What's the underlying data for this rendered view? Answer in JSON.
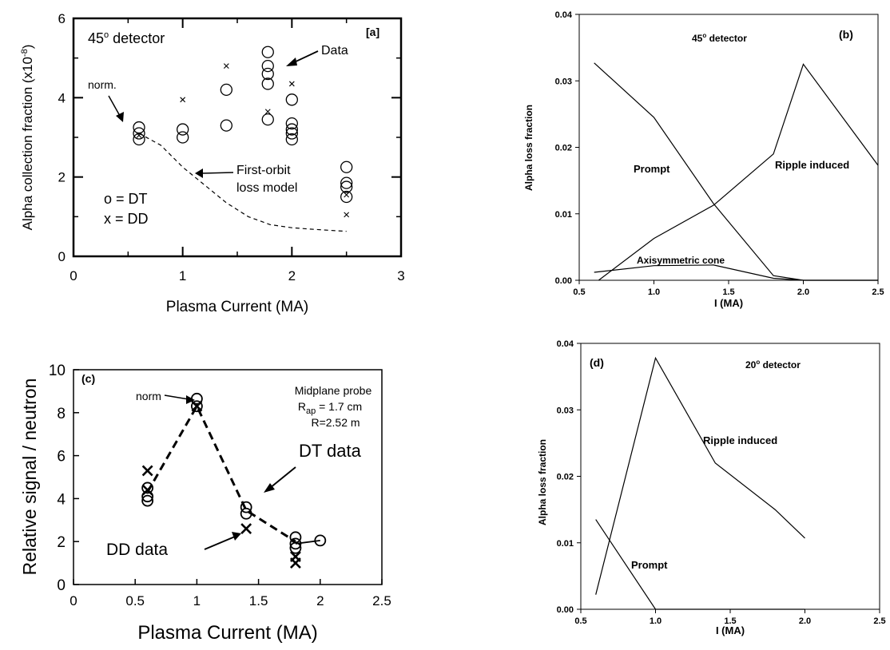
{
  "chart_data": [
    {
      "panel": "a",
      "type": "scatter",
      "panel_label": "[a]",
      "xlabel": "Plasma Current (MA)",
      "ylabel": "Alpha collection fraction (x10",
      "ylabel_exp": "-8",
      "ylabel_close": ")",
      "xlim": [
        0,
        3
      ],
      "ylim": [
        0,
        6
      ],
      "xticks": [
        0,
        1,
        2,
        3
      ],
      "yticks": [
        0,
        2,
        4,
        6
      ],
      "annotations": {
        "detector": "45",
        "detector_deg": "o",
        "detector_suffix": " detector",
        "data": "Data",
        "norm": "norm.",
        "model_line1": "First-orbit",
        "model_line2": "loss model",
        "legend_dt": "o = DT",
        "legend_dd": "x = DD"
      },
      "series": [
        {
          "name": "DT",
          "marker": "circle",
          "points": [
            [
              0.6,
              3.25
            ],
            [
              0.6,
              3.1
            ],
            [
              0.6,
              2.95
            ],
            [
              1.0,
              3.2
            ],
            [
              1.0,
              3.0
            ],
            [
              1.4,
              4.2
            ],
            [
              1.4,
              3.3
            ],
            [
              1.78,
              5.15
            ],
            [
              1.78,
              4.8
            ],
            [
              1.78,
              4.6
            ],
            [
              1.78,
              4.35
            ],
            [
              1.78,
              3.45
            ],
            [
              2.0,
              3.95
            ],
            [
              2.0,
              3.35
            ],
            [
              2.0,
              3.2
            ],
            [
              2.0,
              3.1
            ],
            [
              2.0,
              2.95
            ],
            [
              2.5,
              2.25
            ],
            [
              2.5,
              1.85
            ],
            [
              2.5,
              1.75
            ],
            [
              2.5,
              1.5
            ]
          ]
        },
        {
          "name": "DD",
          "marker": "x",
          "points": [
            [
              0.6,
              3.05
            ],
            [
              1.0,
              3.95
            ],
            [
              1.4,
              4.8
            ],
            [
              1.78,
              3.65
            ],
            [
              2.0,
              4.35
            ],
            [
              2.5,
              1.55
            ],
            [
              2.5,
              1.05
            ]
          ]
        },
        {
          "name": "First-orbit loss model",
          "style": "dashed",
          "points": [
            [
              0.6,
              3.1
            ],
            [
              0.8,
              2.8
            ],
            [
              1.0,
              2.25
            ],
            [
              1.2,
              1.8
            ],
            [
              1.4,
              1.35
            ],
            [
              1.6,
              1.0
            ],
            [
              1.8,
              0.8
            ],
            [
              2.0,
              0.72
            ],
            [
              2.2,
              0.68
            ],
            [
              2.5,
              0.63
            ]
          ]
        }
      ]
    },
    {
      "panel": "b",
      "type": "line",
      "panel_label": "(b)",
      "title": "45",
      "title_deg": "o",
      "title_suffix": " detector",
      "xlabel": "I (MA)",
      "ylabel": "Alpha loss fraction",
      "xlim": [
        0.5,
        2.5
      ],
      "ylim": [
        0,
        0.04
      ],
      "xticks": [
        0.5,
        1.0,
        1.5,
        2.0,
        2.5
      ],
      "xticklabels": [
        "0.5",
        "1.0",
        "1.5",
        "2.0",
        "2.5"
      ],
      "yticks": [
        0,
        0.01,
        0.02,
        0.03,
        0.04
      ],
      "yticklabels": [
        "0.00",
        "0.01",
        "0.02",
        "0.03",
        "0.04"
      ],
      "series": [
        {
          "name": "Prompt",
          "x": [
            0.6,
            1.0,
            1.4,
            1.8,
            2.0,
            2.5
          ],
          "y": [
            0.0327,
            0.0245,
            0.0115,
            0.0007,
            0.0,
            0.0
          ]
        },
        {
          "name": "Ripple induced",
          "x": [
            0.63,
            1.0,
            1.4,
            1.8,
            2.0,
            2.5
          ],
          "y": [
            0.0,
            0.0063,
            0.0113,
            0.019,
            0.0325,
            0.0173
          ]
        },
        {
          "name": "Axisymmetric cone",
          "x": [
            0.6,
            1.0,
            1.4,
            1.8,
            2.0,
            2.5
          ],
          "y": [
            0.0012,
            0.0022,
            0.0023,
            0.0003,
            0.0,
            0.0
          ]
        }
      ]
    },
    {
      "panel": "c",
      "type": "scatter",
      "panel_label": "(c)",
      "xlabel": "Plasma Current (MA)",
      "ylabel": "Relative signal / neutron",
      "xlim": [
        0,
        2.5
      ],
      "ylim": [
        0,
        10
      ],
      "xticks": [
        0,
        0.5,
        1,
        1.5,
        2,
        2.5
      ],
      "xticklabels": [
        "0",
        "0.5",
        "1",
        "1.5",
        "2",
        "2.5"
      ],
      "yticks": [
        0,
        2,
        4,
        6,
        8,
        10
      ],
      "annotations": {
        "probe": "Midplane probe",
        "rap_main": "R",
        "rap_sub": "ap",
        "rap_value": " = 1.7 cm",
        "radius": "R=2.52 m",
        "norm": "norm",
        "dt": "DT data",
        "dd": "DD data"
      },
      "series": [
        {
          "name": "DT",
          "marker": "circle",
          "points": [
            [
              0.6,
              4.5
            ],
            [
              0.6,
              4.1
            ],
            [
              0.6,
              3.9
            ],
            [
              1.0,
              8.65
            ],
            [
              1.0,
              8.3
            ],
            [
              1.4,
              3.6
            ],
            [
              1.4,
              3.3
            ],
            [
              1.8,
              2.2
            ],
            [
              1.8,
              1.9
            ],
            [
              1.8,
              1.7
            ],
            [
              2.0,
              2.05
            ]
          ]
        },
        {
          "name": "DD",
          "marker": "x",
          "points": [
            [
              0.6,
              5.3
            ],
            [
              0.6,
              4.4
            ],
            [
              1.0,
              8.3
            ],
            [
              1.4,
              2.6
            ],
            [
              1.8,
              1.3
            ],
            [
              1.8,
              1.0
            ]
          ]
        },
        {
          "name": "trend",
          "style": "dashed",
          "points": [
            [
              0.6,
              4.3
            ],
            [
              1.0,
              8.3
            ],
            [
              1.4,
              3.45
            ],
            [
              1.8,
              2.0
            ]
          ]
        }
      ]
    },
    {
      "panel": "d",
      "type": "line",
      "panel_label": "(d)",
      "title": "20",
      "title_deg": "o",
      "title_suffix": " detector",
      "xlabel": "I (MA)",
      "ylabel": "Alpha loss fraction",
      "xlim": [
        0.5,
        2.5
      ],
      "ylim": [
        0,
        0.04
      ],
      "xticks": [
        0.5,
        1.0,
        1.5,
        2.0,
        2.5
      ],
      "xticklabels": [
        "0.5",
        "1.0",
        "1.5",
        "2.0",
        "2.5"
      ],
      "yticks": [
        0,
        0.01,
        0.02,
        0.03,
        0.04
      ],
      "yticklabels": [
        "0.00",
        "0.01",
        "0.02",
        "0.03",
        "0.04"
      ],
      "series": [
        {
          "name": "Ripple induced",
          "x": [
            0.6,
            1.0,
            1.4,
            1.8,
            2.0
          ],
          "y": [
            0.0022,
            0.0378,
            0.022,
            0.015,
            0.0107
          ]
        },
        {
          "name": "Prompt",
          "x": [
            0.6,
            1.0,
            1.4,
            2.0
          ],
          "y": [
            0.0135,
            0.0,
            0.0,
            0.0
          ]
        }
      ]
    }
  ]
}
